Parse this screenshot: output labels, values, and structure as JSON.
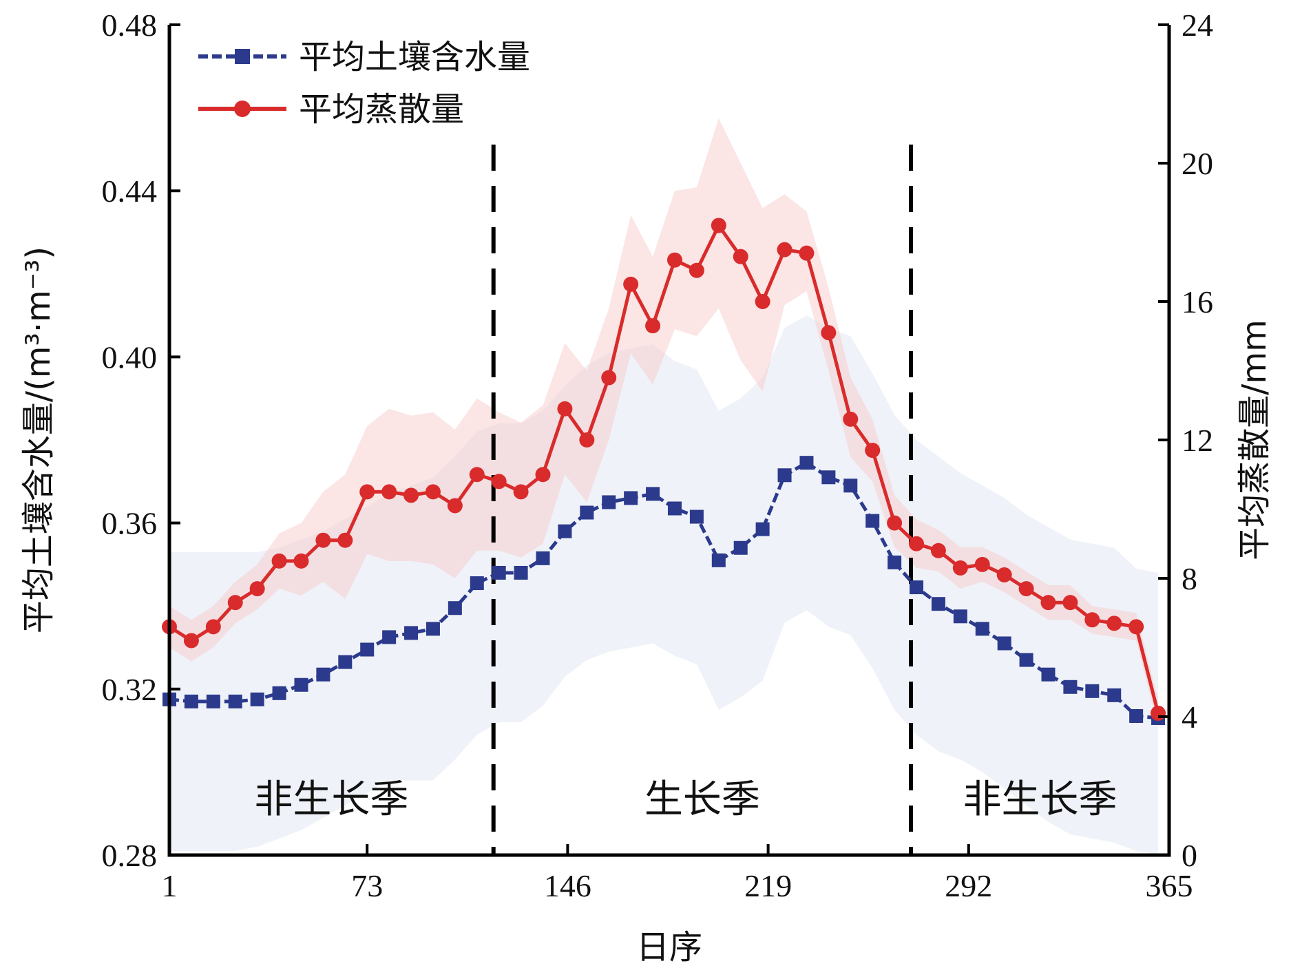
{
  "chart_data": {
    "type": "line",
    "xlabel": "日序",
    "ylabel_left": "平均土壤含水量/(m³·m⁻³)",
    "ylabel_right": "平均蒸散量/mm",
    "xlim": [
      1,
      365
    ],
    "xticks": [
      "1",
      "73",
      "146",
      "219",
      "292",
      "365"
    ],
    "ylim_left": [
      0.28,
      0.48
    ],
    "yticks_left": [
      "0.28",
      "0.32",
      "0.36",
      "0.40",
      "0.44",
      "0.48"
    ],
    "ylim_right": [
      0,
      24
    ],
    "yticks_right": [
      "0",
      "4",
      "8",
      "12",
      "16",
      "20",
      "24"
    ],
    "legend_position": "top-left",
    "x": [
      1,
      9,
      17,
      25,
      33,
      41,
      49,
      57,
      65,
      73,
      81,
      89,
      97,
      105,
      113,
      121,
      129,
      137,
      145,
      153,
      161,
      169,
      177,
      185,
      193,
      201,
      209,
      217,
      225,
      233,
      241,
      249,
      257,
      265,
      273,
      281,
      289,
      297,
      305,
      313,
      321,
      329,
      337,
      345,
      353,
      361
    ],
    "series": [
      {
        "name": "平均土壤含水量",
        "axis": "left",
        "color": "#2b3a8c",
        "marker": "square",
        "values": [
          0.3175,
          0.317,
          0.317,
          0.317,
          0.3175,
          0.319,
          0.321,
          0.3235,
          0.3265,
          0.3295,
          0.3325,
          0.3335,
          0.3345,
          0.3395,
          0.3455,
          0.348,
          0.348,
          0.3515,
          0.358,
          0.3625,
          0.365,
          0.366,
          0.367,
          0.3635,
          0.3615,
          0.351,
          0.354,
          0.3585,
          0.3715,
          0.3745,
          0.371,
          0.369,
          0.3605,
          0.3505,
          0.3445,
          0.3405,
          0.3375,
          0.3345,
          0.331,
          0.327,
          0.3235,
          0.3205,
          0.3195,
          0.3185,
          0.3135,
          0.313
        ],
        "band_upper": [
          0.353,
          0.353,
          0.353,
          0.353,
          0.353,
          0.354,
          0.356,
          0.358,
          0.361,
          0.364,
          0.367,
          0.369,
          0.371,
          0.376,
          0.382,
          0.384,
          0.384,
          0.387,
          0.393,
          0.398,
          0.401,
          0.402,
          0.403,
          0.399,
          0.397,
          0.387,
          0.39,
          0.395,
          0.407,
          0.41,
          0.407,
          0.405,
          0.396,
          0.386,
          0.38,
          0.376,
          0.372,
          0.369,
          0.366,
          0.362,
          0.359,
          0.356,
          0.355,
          0.354,
          0.349,
          0.348
        ],
        "band_lower": [
          0.281,
          0.281,
          0.281,
          0.281,
          0.282,
          0.284,
          0.286,
          0.289,
          0.292,
          0.295,
          0.298,
          0.298,
          0.298,
          0.303,
          0.309,
          0.312,
          0.312,
          0.316,
          0.323,
          0.327,
          0.329,
          0.33,
          0.331,
          0.328,
          0.326,
          0.315,
          0.318,
          0.322,
          0.336,
          0.339,
          0.335,
          0.333,
          0.325,
          0.315,
          0.309,
          0.305,
          0.303,
          0.3,
          0.296,
          0.292,
          0.288,
          0.285,
          0.284,
          0.283,
          0.281,
          0.28
        ]
      },
      {
        "name": "平均蒸散量",
        "axis": "right",
        "color": "#d92b2b",
        "marker": "circle",
        "values": [
          6.6,
          6.2,
          6.6,
          7.3,
          7.7,
          8.5,
          8.5,
          9.1,
          9.1,
          10.5,
          10.5,
          10.4,
          10.5,
          10.1,
          11.0,
          10.8,
          10.5,
          11.0,
          12.9,
          12.0,
          13.8,
          16.5,
          15.3,
          17.2,
          16.9,
          18.2,
          17.3,
          16.0,
          17.5,
          17.4,
          15.1,
          12.6,
          11.7,
          9.6,
          9.0,
          8.8,
          8.3,
          8.4,
          8.1,
          7.7,
          7.3,
          7.3,
          6.8,
          6.7,
          6.6,
          4.1
        ],
        "band_upper": [
          7.2,
          6.8,
          7.2,
          7.9,
          8.4,
          9.3,
          9.6,
          10.5,
          11.0,
          12.4,
          12.9,
          12.7,
          12.8,
          12.3,
          13.2,
          12.8,
          12.5,
          13.0,
          14.8,
          14.0,
          15.8,
          18.5,
          17.3,
          19.2,
          19.3,
          21.3,
          20.0,
          18.7,
          19.1,
          18.6,
          16.4,
          13.8,
          12.6,
          10.4,
          9.7,
          9.4,
          8.9,
          8.9,
          8.6,
          8.2,
          7.8,
          7.8,
          7.2,
          7.1,
          7.0,
          4.5
        ],
        "band_lower": [
          6.0,
          5.6,
          6.0,
          6.7,
          7.1,
          7.7,
          7.5,
          7.9,
          7.4,
          8.7,
          8.5,
          8.5,
          8.4,
          8.0,
          8.8,
          8.8,
          8.6,
          9.0,
          11.0,
          10.2,
          12.0,
          14.5,
          13.6,
          15.2,
          15.0,
          15.8,
          14.3,
          13.4,
          15.9,
          16.3,
          14.0,
          11.5,
          10.8,
          8.9,
          8.3,
          8.2,
          7.7,
          7.9,
          7.6,
          7.2,
          6.8,
          6.8,
          6.4,
          6.3,
          6.2,
          3.7
        ]
      }
    ],
    "season_boundaries": [
      119,
      271
    ],
    "region_labels": [
      {
        "text": "非生长季",
        "x": 60
      },
      {
        "text": "生长季",
        "x": 195
      },
      {
        "text": "非生长季",
        "x": 318
      }
    ]
  }
}
